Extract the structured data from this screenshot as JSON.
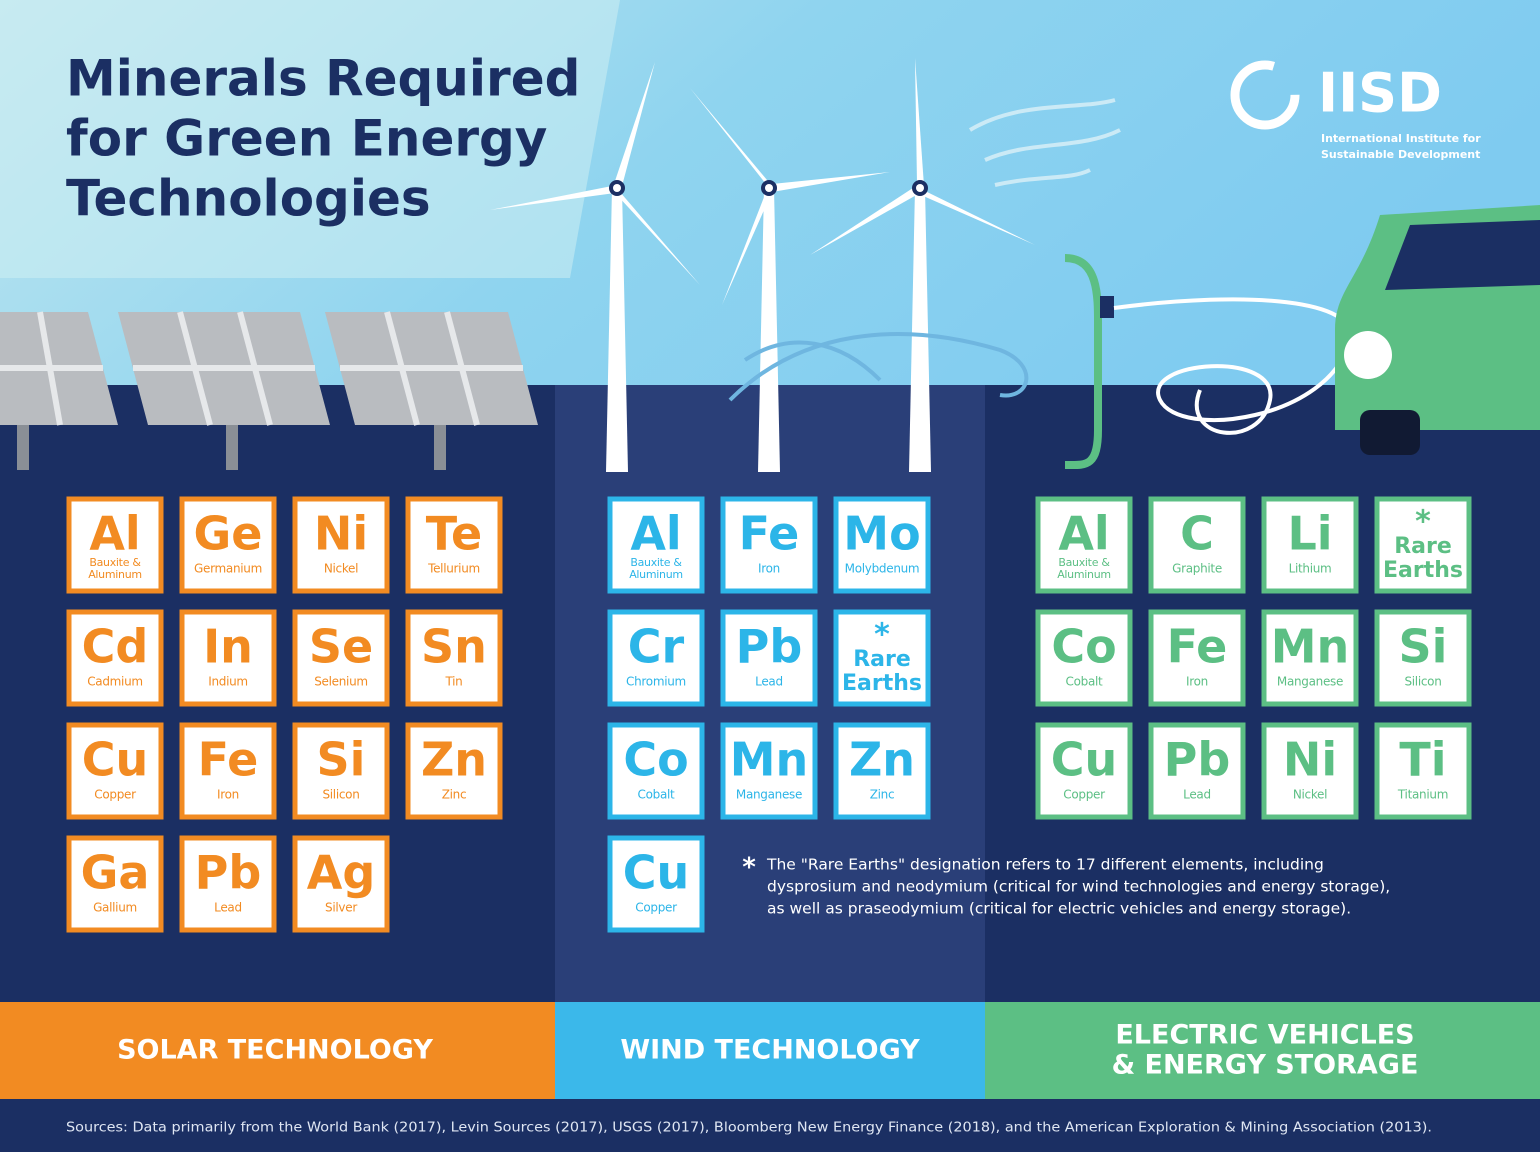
{
  "header": {
    "title_lines": [
      "Minerals Required",
      "for Green Energy",
      "Technologies"
    ]
  },
  "logo": {
    "name": "IISD",
    "subtitle_lines": [
      "International Institute for",
      "Sustainable Development"
    ]
  },
  "sections": [
    {
      "label_lines": [
        "SOLAR TECHNOLOGY"
      ],
      "elements": [
        {
          "symbol": "Al",
          "name_lines": [
            "Bauxite &",
            "Aluminum"
          ]
        },
        {
          "symbol": "Ge",
          "name_lines": [
            "Germanium"
          ]
        },
        {
          "symbol": "Ni",
          "name_lines": [
            "Nickel"
          ]
        },
        {
          "symbol": "Te",
          "name_lines": [
            "Tellurium"
          ]
        },
        {
          "symbol": "Cd",
          "name_lines": [
            "Cadmium"
          ]
        },
        {
          "symbol": "In",
          "name_lines": [
            "Indium"
          ]
        },
        {
          "symbol": "Se",
          "name_lines": [
            "Selenium"
          ]
        },
        {
          "symbol": "Sn",
          "name_lines": [
            "Tin"
          ]
        },
        {
          "symbol": "Cu",
          "name_lines": [
            "Copper"
          ]
        },
        {
          "symbol": "Fe",
          "name_lines": [
            "Iron"
          ]
        },
        {
          "symbol": "Si",
          "name_lines": [
            "Silicon"
          ]
        },
        {
          "symbol": "Zn",
          "name_lines": [
            "Zinc"
          ]
        },
        {
          "symbol": "Ga",
          "name_lines": [
            "Gallium"
          ]
        },
        {
          "symbol": "Pb",
          "name_lines": [
            "Lead"
          ]
        },
        {
          "symbol": "Ag",
          "name_lines": [
            "Silver"
          ]
        }
      ]
    },
    {
      "label_lines": [
        "WIND TECHNOLOGY"
      ],
      "elements": [
        {
          "symbol": "Al",
          "name_lines": [
            "Bauxite &",
            "Aluminum"
          ]
        },
        {
          "symbol": "Fe",
          "name_lines": [
            "Iron"
          ]
        },
        {
          "symbol": "Mo",
          "name_lines": [
            "Molybdenum"
          ]
        },
        {
          "symbol": "Cr",
          "name_lines": [
            "Chromium"
          ]
        },
        {
          "symbol": "Pb",
          "name_lines": [
            "Lead"
          ]
        },
        {
          "marker": "*",
          "title_lines": [
            "Rare",
            "Earths"
          ]
        },
        {
          "symbol": "Co",
          "name_lines": [
            "Cobalt"
          ]
        },
        {
          "symbol": "Mn",
          "name_lines": [
            "Manganese"
          ]
        },
        {
          "symbol": "Zn",
          "name_lines": [
            "Zinc"
          ]
        },
        {
          "symbol": "Cu",
          "name_lines": [
            "Copper"
          ]
        }
      ]
    },
    {
      "label_lines": [
        "ELECTRIC VEHICLES",
        "& ENERGY STORAGE"
      ],
      "elements": [
        {
          "symbol": "Al",
          "name_lines": [
            "Bauxite &",
            "Aluminum"
          ]
        },
        {
          "symbol": "C",
          "name_lines": [
            "Graphite"
          ]
        },
        {
          "symbol": "Li",
          "name_lines": [
            "Lithium"
          ]
        },
        {
          "marker": "*",
          "title_lines": [
            "Rare",
            "Earths"
          ]
        },
        {
          "symbol": "Co",
          "name_lines": [
            "Cobalt"
          ]
        },
        {
          "symbol": "Fe",
          "name_lines": [
            "Iron"
          ]
        },
        {
          "symbol": "Mn",
          "name_lines": [
            "Manganese"
          ]
        },
        {
          "symbol": "Si",
          "name_lines": [
            "Silicon"
          ]
        },
        {
          "symbol": "Cu",
          "name_lines": [
            "Copper"
          ]
        },
        {
          "symbol": "Pb",
          "name_lines": [
            "Lead"
          ]
        },
        {
          "symbol": "Ni",
          "name_lines": [
            "Nickel"
          ]
        },
        {
          "symbol": "Ti",
          "name_lines": [
            "Titanium"
          ]
        }
      ]
    }
  ],
  "note": {
    "marker": "*",
    "lines": [
      "The \"Rare Earths\" designation refers to 17 different elements, including",
      "dysprosium and neodymium (critical for wind technologies and energy storage),",
      "as well as praseodymium (critical for electric vehicles and energy storage)."
    ]
  },
  "sources": "Sources: Data primarily from the World Bank (2017), Levin Sources (2017), USGS (2017), Bloomberg New Energy Finance (2018), and the American Exploration & Mining Association (2013)."
}
